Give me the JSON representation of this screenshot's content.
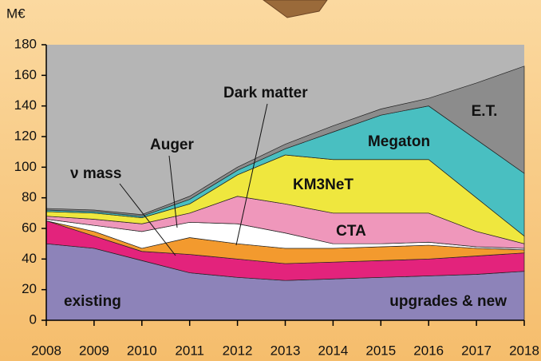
{
  "chart_data": {
    "type": "stacked-area",
    "y_unit": "M€",
    "x": [
      2008,
      2009,
      2010,
      2011,
      2012,
      2013,
      2014,
      2015,
      2016,
      2017,
      2018
    ],
    "xlim": [
      2008,
      2018
    ],
    "xticks": [
      2008,
      2009,
      2010,
      2011,
      2012,
      2013,
      2014,
      2015,
      2016,
      2017,
      2018
    ],
    "ylim": [
      0,
      180
    ],
    "yticks": [
      0,
      20,
      40,
      60,
      80,
      100,
      120,
      140,
      160,
      180
    ],
    "annotations": [
      "upgrades & new"
    ],
    "series": [
      {
        "name": "existing",
        "color": "#8d83b9",
        "values": [
          50,
          47,
          39,
          31,
          28,
          26,
          27,
          28,
          29,
          30,
          32
        ]
      },
      {
        "name": "ν mass",
        "color": "#e3237c",
        "values": [
          15,
          8,
          6,
          12,
          12,
          11,
          11,
          11,
          11,
          12,
          12
        ]
      },
      {
        "name": "Dark matter",
        "color": "#f39a2e",
        "values": [
          0,
          3,
          2,
          11,
          10,
          10,
          9,
          9,
          9,
          5,
          2
        ]
      },
      {
        "name": "Auger",
        "color": "#ffffff",
        "values": [
          1,
          4,
          11,
          10,
          13,
          10,
          3,
          2,
          2,
          1,
          1
        ]
      },
      {
        "name": "CTA",
        "color": "#ef97bb",
        "values": [
          2,
          4,
          5,
          6,
          18,
          19,
          20,
          20,
          19,
          10,
          3
        ]
      },
      {
        "name": "KM3NeT",
        "color": "#efe73e",
        "values": [
          3,
          4,
          4,
          6,
          14,
          32,
          35,
          35,
          35,
          22,
          5
        ]
      },
      {
        "name": "Megaton",
        "color": "#49bfc1",
        "values": [
          1,
          1,
          1,
          3,
          3,
          4,
          18,
          29,
          35,
          38,
          41
        ]
      },
      {
        "name": "E.T.",
        "color": "#8c8c8c",
        "values": [
          1,
          1,
          1,
          2,
          2,
          3,
          4,
          4,
          5,
          37,
          70
        ]
      }
    ],
    "plot_background": "#b5b5b5"
  }
}
